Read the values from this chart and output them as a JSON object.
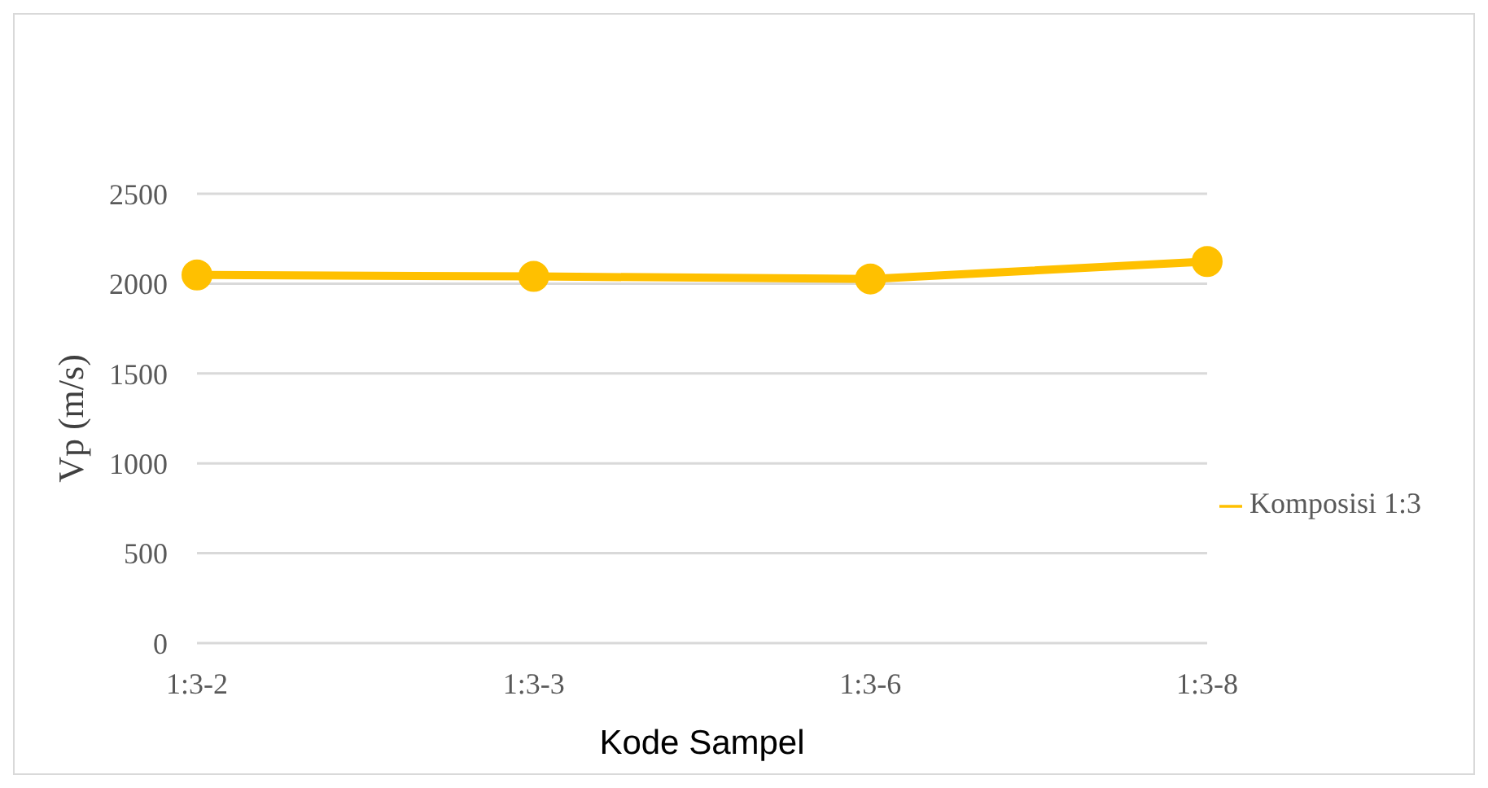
{
  "chart_data": {
    "type": "line",
    "xlabel": "Kode Sampel",
    "ylabel": "Vp (m/s)",
    "categories": [
      "1:3-2",
      "1:3-3",
      "1:3-6",
      "1:3-8"
    ],
    "series": [
      {
        "name": "Komposisi 1:3",
        "color": "#ffc000",
        "values": [
          2048,
          2040,
          2026,
          2123
        ]
      }
    ],
    "ylim": [
      0,
      2500
    ],
    "yticks": [
      0,
      500,
      1000,
      1500,
      2000,
      2500
    ],
    "grid": "y",
    "legend": "right",
    "marker": "circle",
    "line_style": "solid"
  }
}
